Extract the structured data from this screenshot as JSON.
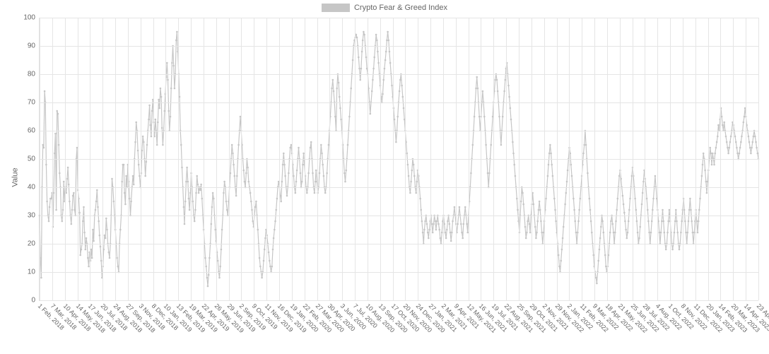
{
  "chart": {
    "type": "line",
    "legend_label": "Crypto Fear & Greed Index",
    "ylabel": "Value",
    "ylim": [
      0,
      100
    ],
    "ytick_step": 10,
    "line_color": "#c6c6c6",
    "marker_color": "#c6c6c6",
    "grid_color": "#e5e5e5",
    "background_color": "#ffffff",
    "label_fontsize": 11,
    "tick_fontsize": 10,
    "xtick_fontsize": 9,
    "xtick_rotate": 45,
    "marker_radius": 1.3,
    "line_width": 1.2,
    "x_labels": [
      "1 Feb, 2018",
      "7 Mar, 2018",
      "10 Apr, 2018",
      "14 May, 2018",
      "17 Jun, 2018",
      "20 Jul, 2018",
      "24 Aug, 2018",
      "27 Sep, 2018",
      "3 Nov, 2018",
      "8 Dec, 2018",
      "10 Jan, 2019",
      "13 Feb, 2019",
      "19 Mar, 2019",
      "22 Apr, 2019",
      "26 May, 2019",
      "29 Jun, 2019",
      "2 Sep, 2019",
      "9 Oct, 2019",
      "11 Nov, 2019",
      "16 Dec, 2019",
      "19 Jan, 2020",
      "22 Feb, 2020",
      "27 Mar, 2020",
      "30 Apr, 2020",
      "3 Jun, 2020",
      "7 Jul, 2020",
      "10 Aug, 2020",
      "13 Sep, 2020",
      "17 Oct, 2020",
      "20 Nov, 2020",
      "24 Dec, 2020",
      "27 Jan, 2021",
      "2 Mar, 2021",
      "9 Apr, 2021",
      "12 May, 2021",
      "16 Jun, 2021",
      "19 Jul, 2021",
      "22 Aug, 2021",
      "25 Sep, 2021",
      "29 Oct, 2021",
      "2 Nov, 2021",
      "29 Nov, 2022",
      "2 Jan, 2022",
      "11 Feb, 2022",
      "9 Mar, 2022",
      "18 Apr, 2022",
      "21 May, 2022",
      "25 Jun, 2022",
      "28 Jul, 2022",
      "4 Aug, 2022",
      "1 Oct, 2022",
      "8 Nov, 2022",
      "11 Dec, 2022",
      "20 Jan, 2023",
      "14 Feb, 2023",
      "20 Mar, 2023",
      "14 Apr, 2023",
      "23 Apr, 2023"
    ],
    "values": [
      30,
      15,
      8,
      40,
      55,
      54,
      74,
      70,
      48,
      35,
      30,
      28,
      33,
      36,
      36,
      38,
      26,
      38,
      52,
      59,
      32,
      67,
      66,
      55,
      45,
      40,
      30,
      28,
      32,
      42,
      35,
      40,
      38,
      43,
      47,
      41,
      35,
      30,
      27,
      32,
      37,
      38,
      32,
      30,
      50,
      54,
      39,
      36,
      31,
      16,
      18,
      20,
      28,
      33,
      24,
      18,
      22,
      20,
      15,
      12,
      17,
      14,
      18,
      15,
      25,
      21,
      30,
      32,
      35,
      39,
      33,
      28,
      23,
      19,
      14,
      8,
      12,
      18,
      23,
      22,
      29,
      25,
      20,
      17,
      15,
      20,
      30,
      43,
      40,
      35,
      30,
      25,
      20,
      15,
      12,
      10,
      20,
      25,
      30,
      42,
      48,
      48,
      38,
      34,
      44,
      40,
      48,
      42,
      36,
      30,
      35,
      40,
      44,
      41,
      50,
      56,
      63,
      60,
      53,
      48,
      44,
      40,
      45,
      53,
      58,
      56,
      50,
      44,
      49,
      55,
      60,
      64,
      69,
      62,
      58,
      67,
      71,
      63,
      58,
      64,
      60,
      55,
      63,
      71,
      68,
      75,
      72,
      61,
      55,
      60,
      67,
      73,
      79,
      84,
      78,
      67,
      60,
      65,
      75,
      84,
      90,
      83,
      75,
      80,
      92,
      95,
      88,
      80,
      72,
      60,
      55,
      47,
      40,
      33,
      27,
      35,
      42,
      47,
      42,
      36,
      32,
      38,
      45,
      40,
      35,
      30,
      28,
      32,
      38,
      44,
      41,
      38,
      40,
      39,
      41,
      36,
      30,
      25,
      20,
      15,
      12,
      8,
      5,
      9,
      15,
      20,
      27,
      33,
      38,
      36,
      30,
      25,
      21,
      17,
      14,
      10,
      8,
      12,
      18,
      25,
      30,
      38,
      42,
      40,
      35,
      32,
      30,
      35,
      40,
      45,
      50,
      55,
      52,
      48,
      44,
      40,
      37,
      44,
      50,
      55,
      60,
      65,
      60,
      55,
      50,
      46,
      42,
      40,
      45,
      50,
      47,
      42,
      40,
      38,
      35,
      32,
      28,
      26,
      30,
      33,
      35,
      30,
      25,
      20,
      15,
      12,
      10,
      8,
      10,
      14,
      18,
      22,
      25,
      23,
      20,
      17,
      14,
      12,
      10,
      12,
      18,
      22,
      25,
      28,
      32,
      36,
      40,
      42,
      40,
      37,
      35,
      42,
      48,
      52,
      48,
      44,
      40,
      37,
      40,
      45,
      50,
      54,
      55,
      52,
      48,
      44,
      40,
      38,
      42,
      46,
      50,
      54,
      50,
      45,
      40,
      42,
      48,
      52,
      48,
      44,
      40,
      38,
      40,
      45,
      50,
      54,
      56,
      50,
      45,
      40,
      38,
      42,
      46,
      42,
      38,
      40,
      45,
      50,
      55,
      52,
      48,
      44,
      40,
      38,
      40,
      45,
      50,
      55,
      60,
      65,
      70,
      75,
      78,
      74,
      70,
      65,
      60,
      75,
      80,
      77,
      72,
      68,
      64,
      60,
      55,
      50,
      45,
      42,
      46,
      50,
      55,
      60,
      65,
      70,
      75,
      80,
      85,
      90,
      92,
      93,
      94,
      93,
      90,
      86,
      82,
      78,
      82,
      88,
      92,
      95,
      94,
      90,
      86,
      82,
      80,
      75,
      70,
      66,
      70,
      74,
      78,
      82,
      86,
      90,
      94,
      92,
      88,
      84,
      80,
      76,
      72,
      70,
      73,
      78,
      82,
      85,
      88,
      92,
      95,
      92,
      88,
      84,
      80,
      76,
      72,
      68,
      64,
      60,
      56,
      60,
      65,
      70,
      74,
      78,
      80,
      76,
      72,
      68,
      64,
      60,
      56,
      52,
      48,
      44,
      40,
      38,
      42,
      46,
      50,
      48,
      44,
      40,
      38,
      42,
      46,
      44,
      40,
      36,
      32,
      28,
      24,
      20,
      25,
      28,
      30,
      27,
      24,
      22,
      25,
      28,
      30,
      27,
      24,
      27,
      30,
      28,
      25,
      28,
      30,
      27,
      25,
      22,
      20,
      24,
      28,
      30,
      27,
      24,
      22,
      25,
      28,
      30,
      27,
      24,
      21,
      24,
      28,
      30,
      33,
      30,
      27,
      24,
      27,
      30,
      33,
      30,
      27,
      24,
      22,
      27,
      30,
      33,
      30,
      27,
      24,
      30,
      35,
      40,
      45,
      50,
      55,
      60,
      65,
      70,
      75,
      79,
      75,
      70,
      65,
      60,
      65,
      70,
      74,
      70,
      65,
      60,
      55,
      50,
      45,
      40,
      45,
      50,
      55,
      60,
      65,
      70,
      74,
      78,
      80,
      78,
      74,
      70,
      65,
      60,
      55,
      60,
      65,
      70,
      74,
      78,
      82,
      84,
      80,
      76,
      72,
      68,
      64,
      60,
      56,
      52,
      48,
      44,
      40,
      36,
      32,
      28,
      24,
      30,
      35,
      40,
      38,
      34,
      30,
      26,
      22,
      24,
      28,
      30,
      27,
      24,
      30,
      34,
      38,
      34,
      30,
      26,
      22,
      24,
      28,
      32,
      35,
      32,
      28,
      24,
      20,
      24,
      28,
      32,
      36,
      40,
      44,
      48,
      52,
      55,
      52,
      48,
      44,
      40,
      36,
      32,
      28,
      24,
      20,
      16,
      12,
      10,
      14,
      18,
      22,
      26,
      30,
      34,
      38,
      42,
      46,
      50,
      54,
      52,
      48,
      44,
      40,
      36,
      32,
      28,
      24,
      20,
      24,
      28,
      32,
      36,
      40,
      44,
      48,
      52,
      55,
      60,
      55,
      50,
      45,
      40,
      36,
      32,
      28,
      24,
      20,
      16,
      12,
      10,
      8,
      6,
      10,
      14,
      18,
      22,
      26,
      30,
      28,
      24,
      20,
      16,
      12,
      10,
      12,
      16,
      20,
      24,
      28,
      30,
      27,
      24,
      20,
      24,
      28,
      32,
      36,
      40,
      44,
      46,
      43,
      40,
      37,
      34,
      31,
      28,
      25,
      22,
      24,
      28,
      32,
      36,
      40,
      44,
      47,
      44,
      40,
      36,
      32,
      28,
      24,
      20,
      22,
      26,
      30,
      34,
      38,
      42,
      46,
      43,
      40,
      36,
      32,
      28,
      24,
      20,
      24,
      28,
      32,
      36,
      40,
      44,
      40,
      36,
      32,
      28,
      24,
      20,
      24,
      28,
      32,
      28,
      24,
      20,
      18,
      20,
      24,
      28,
      32,
      28,
      24,
      20,
      18,
      20,
      24,
      28,
      32,
      28,
      24,
      20,
      18,
      20,
      24,
      28,
      32,
      36,
      32,
      28,
      24,
      20,
      24,
      28,
      32,
      36,
      32,
      28,
      24,
      20,
      24,
      28,
      32,
      28,
      24,
      28,
      32,
      36,
      40,
      44,
      48,
      52,
      50,
      46,
      42,
      38,
      42,
      46,
      50,
      54,
      52,
      48,
      52,
      50,
      48,
      52,
      54,
      56,
      58,
      62,
      60,
      64,
      68,
      65,
      62,
      60,
      63,
      60,
      58,
      56,
      54,
      52,
      54,
      56,
      58,
      60,
      63,
      62,
      60,
      58,
      56,
      54,
      52,
      50,
      52,
      54,
      56,
      58,
      60,
      63,
      65,
      68,
      65,
      62,
      60,
      58,
      56,
      54,
      52,
      54,
      56,
      58,
      60,
      58,
      56,
      54,
      52,
      50
    ]
  }
}
